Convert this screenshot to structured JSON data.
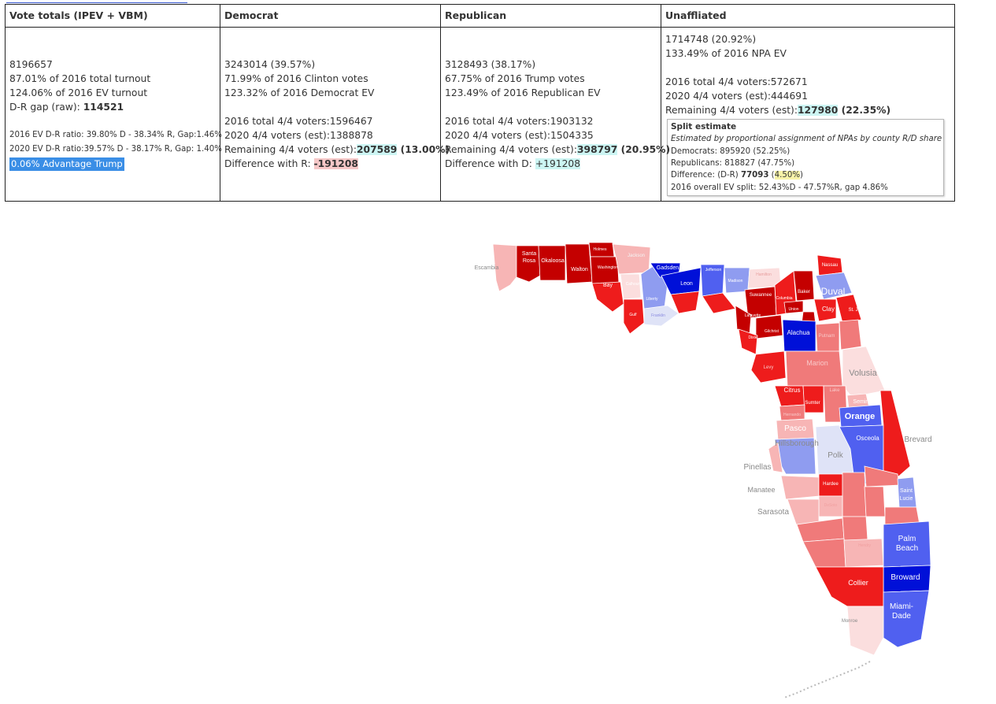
{
  "table": {
    "headers": {
      "totals": "Vote totals (IPEV + VBM)",
      "dem": "Democrat",
      "rep": "Republican",
      "una": "Unaffliated"
    },
    "totals": {
      "total": "8196657",
      "pct_2016_turnout": "87.01% of 2016 total turnout",
      "pct_2016_ev": "124.06% of 2016 EV turnout",
      "gap_label": "D-R gap (raw): ",
      "gap_value": "114521",
      "ratio_2016": "2016 EV D-R ratio: 39.80% D - 38.34% R, Gap:1.46%",
      "ratio_2020": "2020 EV D-R ratio:39.57% D - 38.17% R, Gap: 1.40%",
      "advantage": "0.06% Advantage Trump"
    },
    "dem": {
      "total": "3243014 (39.57%)",
      "pct_candidate": "71.99% of 2016 Clinton votes",
      "pct_party_ev": "123.32% of 2016 Democrat EV",
      "voters_2016": "2016 total 4/4 voters:1596467",
      "voters_2020": "2020 4/4 voters (est):1388878",
      "remaining_label": "Remaining 4/4 voters (est):",
      "remaining_value": "207589",
      "remaining_pct": " (13.00%)",
      "diff_label": "Difference with R: ",
      "diff_value": "-191208"
    },
    "rep": {
      "total": "3128493 (38.17%)",
      "pct_candidate": "67.75% of 2016 Trump votes",
      "pct_party_ev": "123.49% of 2016 Republican EV",
      "voters_2016": "2016 total 4/4 voters:1903132",
      "voters_2020": "2020 4/4 voters (est):1504335",
      "remaining_label": "Remaining 4/4 voters (est):",
      "remaining_value": "398797",
      "remaining_pct": " (20.95%)",
      "diff_label": "Difference with D: ",
      "diff_value": "+191208"
    },
    "una": {
      "total": "1714748 (20.92%)",
      "pct_npa_ev": "133.49% of 2016 NPA EV",
      "voters_2016": "2016 total 4/4 voters:572671",
      "voters_2020": "2020 4/4 voters (est):444691",
      "remaining_label": "Remaining 4/4 voters (est):",
      "remaining_value": "127980",
      "remaining_pct": " (22.35%)",
      "split": {
        "title": "Split estimate",
        "note": "Estimated by proportional assignment of NPAs by county R/D share",
        "democrats": "Democrats: 895920 (52.25%)",
        "republicans": "Republicans: 818827 (47.75%)",
        "diff_label": "Difference: (D-R) ",
        "diff_value": "77093",
        "diff_pct_open": " (",
        "diff_pct": "4.50%",
        "diff_pct_close": ")",
        "overall": "2016 overall EV split: 52.43%D - 47.57%R, gap 4.86%"
      }
    }
  },
  "map": {
    "colors": {
      "dark_red": "#c40000",
      "red": "#ee1c1c",
      "medium_red": "#f07a7a",
      "light_red": "#f7b5b5",
      "pale_red": "#fbdede",
      "pale_blue": "#dfe3f7",
      "light_blue": "#8f9cf0",
      "medium_blue": "#5060f0",
      "dark_blue": "#0010d8"
    },
    "labels": {
      "escambia": "Escambia",
      "santa_rosa_1": "Santa",
      "santa_rosa_2": "Rosa",
      "okaloosa": "Okaloosa",
      "walton": "Walton",
      "holmes": "Holmes",
      "washington": "Washington",
      "jackson": "Jackson",
      "bay": "Bay",
      "calhoun": "Calhoun",
      "gulf": "Gulf",
      "liberty": "Liberty",
      "franklin": "Franklin",
      "gadsden": "Gadsden",
      "leon": "Leon",
      "jefferson": "Jefferson",
      "madison": "Madison",
      "hamilton": "Hamilton",
      "suwannee": "Suwannee",
      "lafayette": "Lafayette",
      "columbia": "Columbia",
      "union": "Union",
      "baker": "Baker",
      "nassau": "Nassau",
      "duval": "Duval",
      "clay": "Clay",
      "st_johns_1": "St. Johns",
      "gilchrist": "Gilchrist",
      "dixie": "Dixie",
      "alachua": "Alachua",
      "putnam": "Putnam",
      "levy": "Levy",
      "marion": "Marion",
      "volusia": "Volusia",
      "citrus": "Citrus",
      "sumter": "Sumter",
      "lake": "Lake",
      "seminole": "Seminole",
      "hernando": "Hernando",
      "orange": "Orange",
      "pasco": "Pasco",
      "hillsborough": "Hillsborough",
      "polk": "Polk",
      "osceola": "Osceola",
      "brevard": "Brevard",
      "pinellas": "Pinellas",
      "manatee": "Manatee",
      "hardee": "Hardee",
      "desoto": "DeSoto",
      "sarasota": "Sarasota",
      "saint_lucie_1": "Saint",
      "saint_lucie_2": "Lucie",
      "palm_beach_1": "Palm",
      "palm_beach_2": "Beach",
      "hendry": "Hendry",
      "broward": "Broward",
      "collier": "Collier",
      "miami_dade_1": "Miami-",
      "miami_dade_2": "Dade",
      "monroe": "Monroe"
    }
  }
}
